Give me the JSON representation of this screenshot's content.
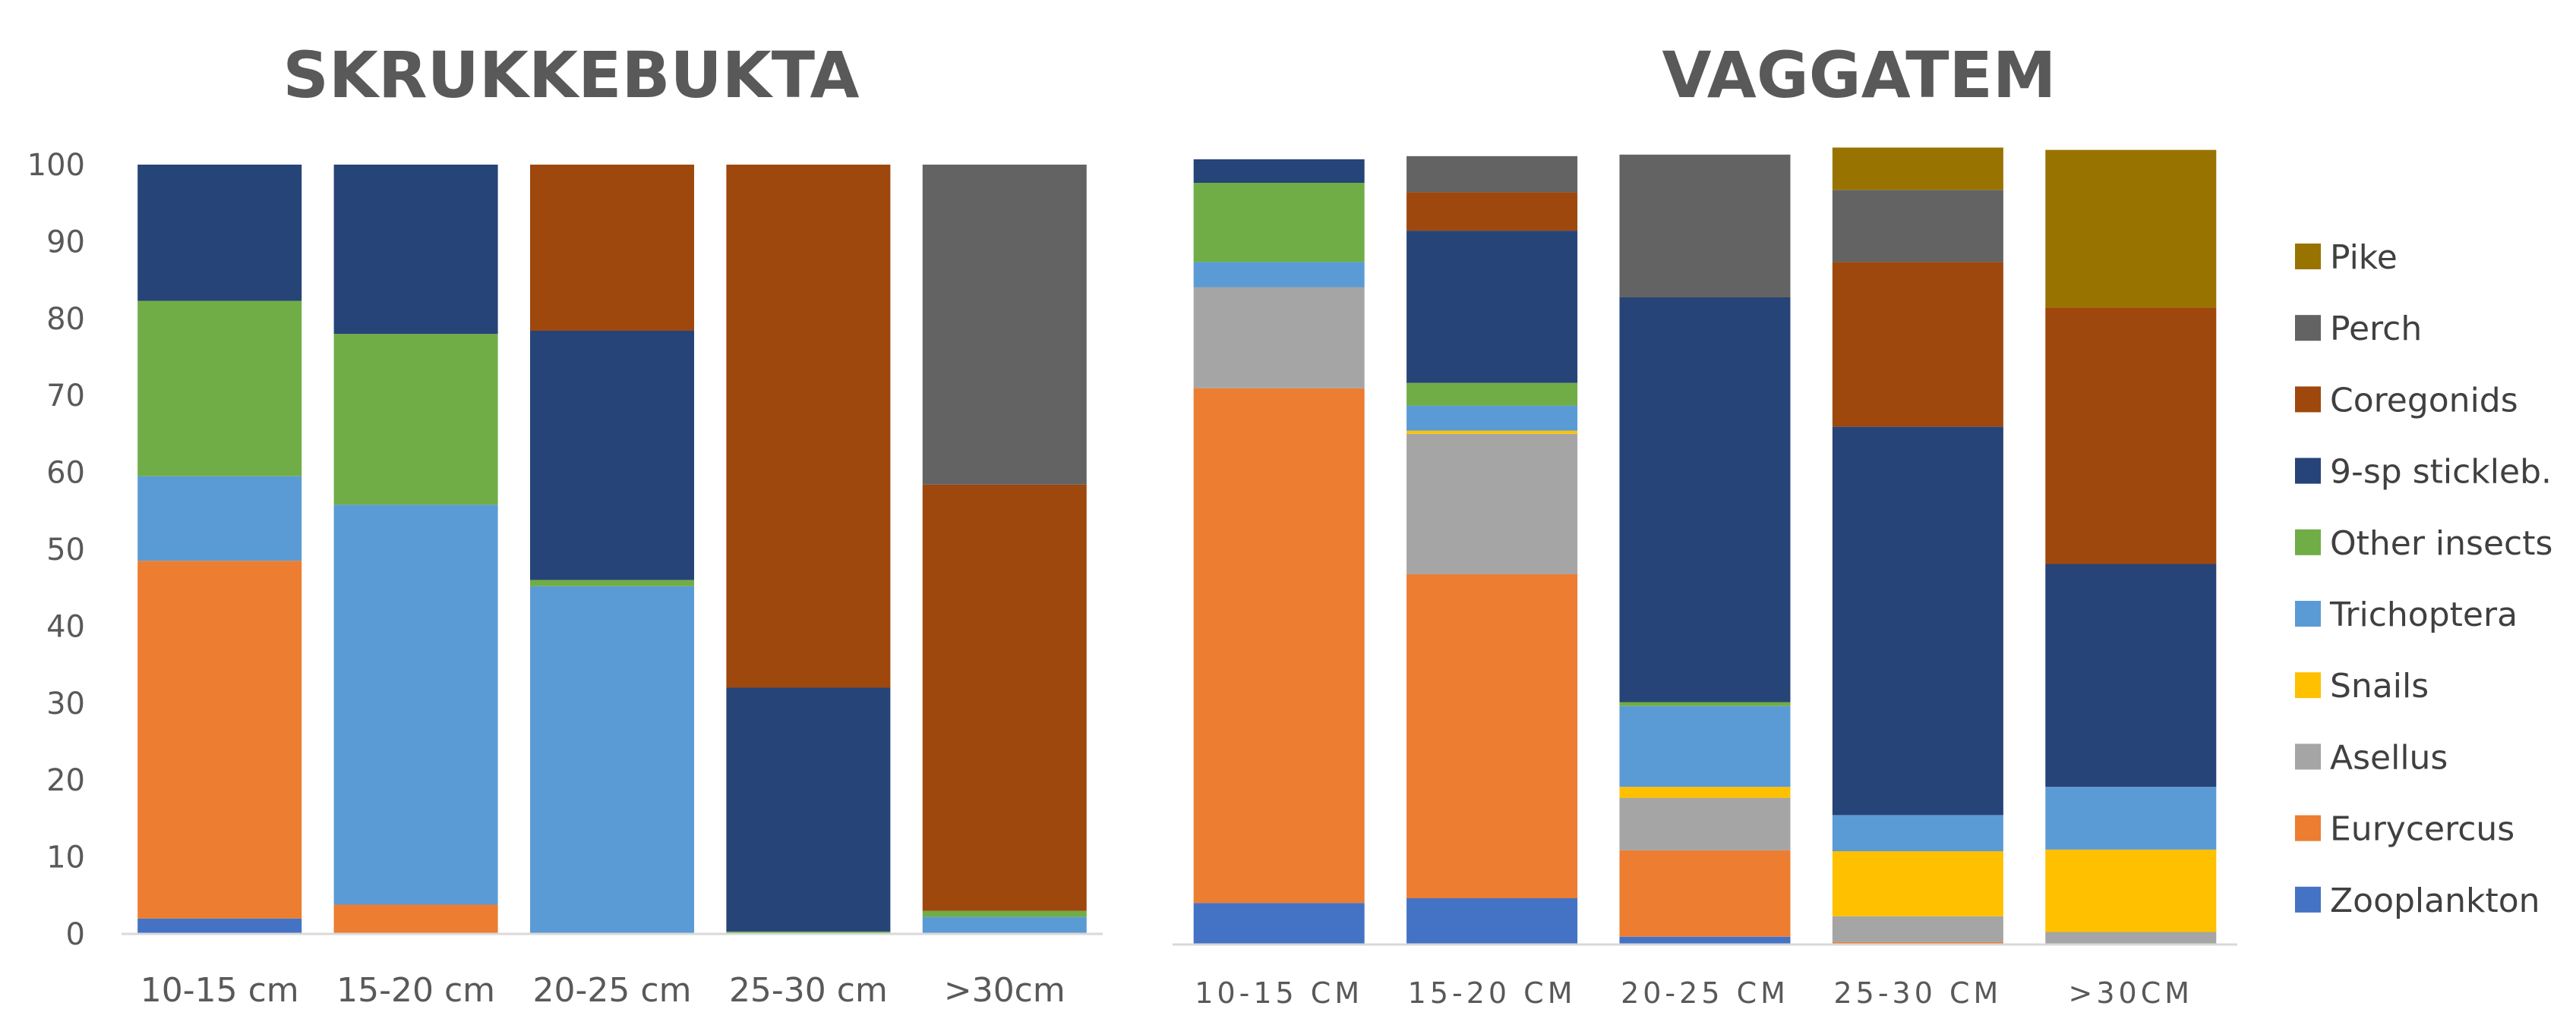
{
  "chart_data": [
    {
      "type": "bar",
      "stacked": true,
      "title": "SKRUKKEBUKTA",
      "categories": [
        "10-15 cm",
        "15-20 cm",
        "20-25 cm",
        "25-30 cm",
        ">30cm"
      ],
      "ylim": [
        0,
        100
      ],
      "yticks": [
        "0",
        "10",
        "20",
        "30",
        "40",
        "50",
        "60",
        "70",
        "80",
        "90",
        "100"
      ],
      "grid": false,
      "series": [
        {
          "name": "Zooplankton",
          "color": "#4472C4",
          "values": [
            2,
            0,
            0,
            0,
            0
          ]
        },
        {
          "name": "Eurycercus",
          "color": "#ED7D31",
          "values": [
            46.5,
            3.8,
            0,
            0,
            0
          ]
        },
        {
          "name": "Asellus",
          "color": "#A5A5A5",
          "values": [
            0,
            0,
            0,
            0,
            0
          ]
        },
        {
          "name": "Snails",
          "color": "#FFC000",
          "values": [
            0,
            0,
            0,
            0,
            0
          ]
        },
        {
          "name": "Trichoptera",
          "color": "#5B9BD5",
          "values": [
            11,
            52,
            45.2,
            0,
            2.2
          ]
        },
        {
          "name": "Other insects",
          "color": "#70AD47",
          "values": [
            22.8,
            22.2,
            0.8,
            0.3,
            0.8
          ]
        },
        {
          "name": "9-sp stickleb.",
          "color": "#264478",
          "values": [
            17.7,
            22,
            32.4,
            31.7,
            0
          ]
        },
        {
          "name": "Coregonids",
          "color": "#9E480E",
          "values": [
            0,
            0,
            21.6,
            68,
            55.4
          ]
        },
        {
          "name": "Perch",
          "color": "#636363",
          "values": [
            0,
            0,
            0,
            0,
            41.6
          ]
        },
        {
          "name": "Pike",
          "color": "#997300",
          "values": [
            0,
            0,
            0,
            0,
            0
          ]
        }
      ]
    },
    {
      "type": "bar",
      "stacked": true,
      "title": "VAGGATEM",
      "categories": [
        "10-15 CM",
        "15-20 CM",
        "20-25 CM",
        "25-30 CM",
        ">30CM"
      ],
      "ylim": [
        0,
        100
      ],
      "grid": false,
      "legend_position": "right",
      "series": [
        {
          "name": "Zooplankton",
          "color": "#4472C4",
          "values": [
            5.3,
            5.9,
            1,
            0,
            0
          ]
        },
        {
          "name": "Eurycercus",
          "color": "#ED7D31",
          "values": [
            65.6,
            41.3,
            11,
            0.3,
            0
          ]
        },
        {
          "name": "Asellus",
          "color": "#A5A5A5",
          "values": [
            12.9,
            17.9,
            6.7,
            3.3,
            1.6
          ]
        },
        {
          "name": "Snails",
          "color": "#FFC000",
          "values": [
            0,
            0.4,
            1.4,
            8.3,
            10.5
          ]
        },
        {
          "name": "Trichoptera",
          "color": "#5B9BD5",
          "values": [
            3.2,
            3.2,
            10.3,
            4.6,
            8
          ]
        },
        {
          "name": "Other insects",
          "color": "#70AD47",
          "values": [
            10.1,
            2.9,
            0.5,
            0,
            0
          ]
        },
        {
          "name": "9-sp stickleb.",
          "color": "#264478",
          "values": [
            3,
            19.4,
            51.6,
            49.5,
            28.4
          ]
        },
        {
          "name": "Coregonids",
          "color": "#9E480E",
          "values": [
            0,
            4.9,
            0,
            21,
            32.7
          ]
        },
        {
          "name": "Perch",
          "color": "#636363",
          "values": [
            0,
            4.6,
            18.2,
            9.2,
            0
          ]
        },
        {
          "name": "Pike",
          "color": "#997300",
          "values": [
            0,
            0,
            0,
            5.4,
            20.1
          ]
        }
      ]
    }
  ]
}
